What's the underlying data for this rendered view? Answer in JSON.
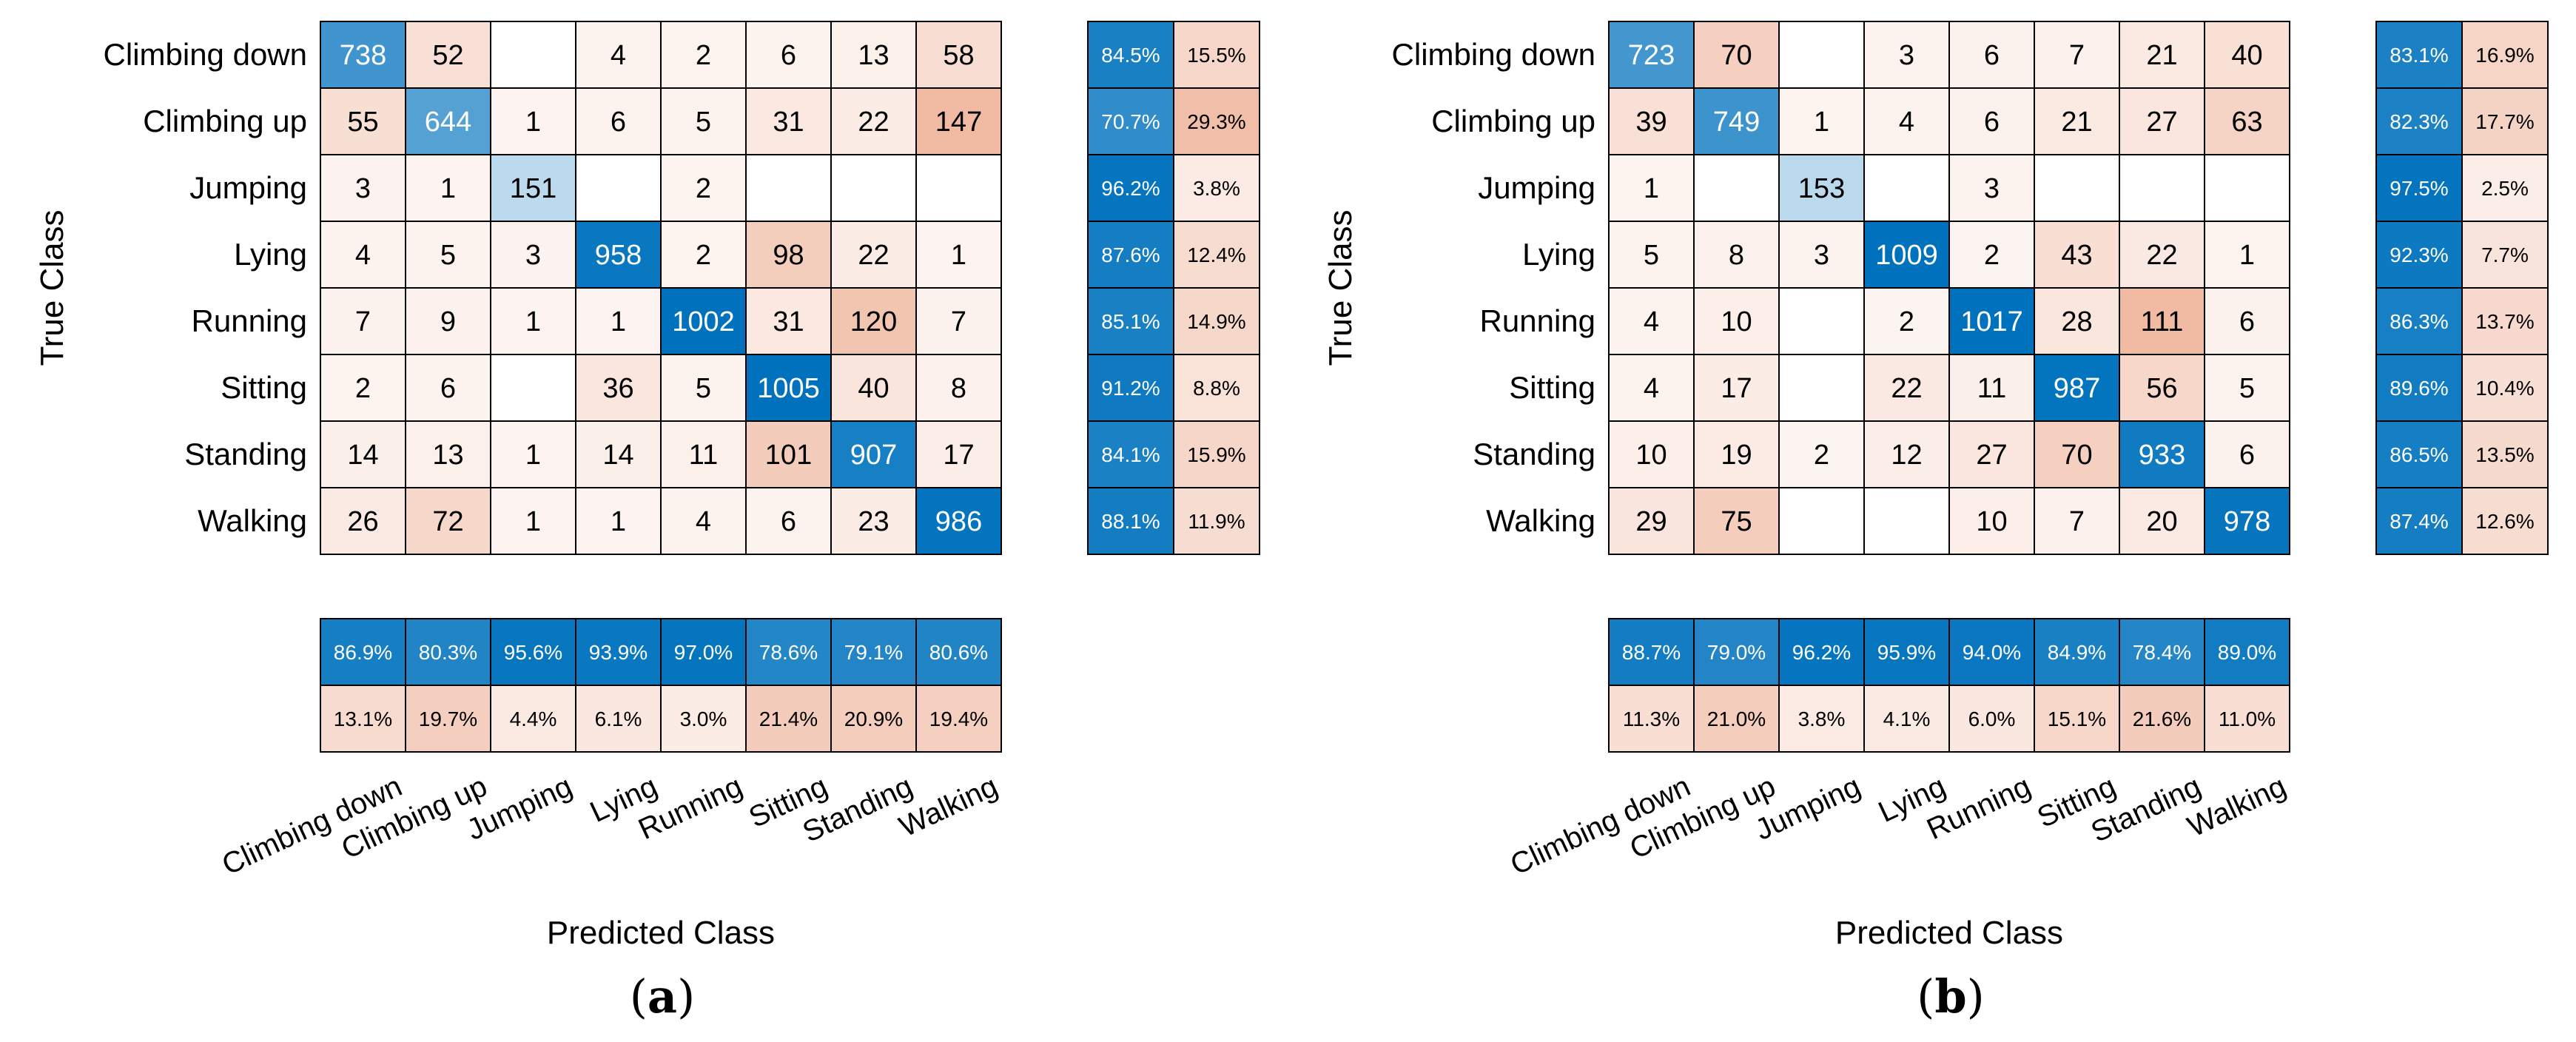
{
  "chart_data": [
    {
      "type": "heatmap",
      "panel_label": "a",
      "xlabel": "Predicted Class",
      "ylabel": "True Class",
      "classes": [
        "Climbing down",
        "Climbing up",
        "Jumping",
        "Lying",
        "Running",
        "Sitting",
        "Standing",
        "Walking"
      ],
      "matrix": [
        [
          738,
          52,
          null,
          4,
          2,
          6,
          13,
          58
        ],
        [
          55,
          644,
          1,
          6,
          5,
          31,
          22,
          147
        ],
        [
          3,
          1,
          151,
          null,
          2,
          null,
          null,
          null
        ],
        [
          4,
          5,
          3,
          958,
          2,
          98,
          22,
          1
        ],
        [
          7,
          9,
          1,
          1,
          1002,
          31,
          120,
          7
        ],
        [
          2,
          6,
          null,
          36,
          5,
          1005,
          40,
          8
        ],
        [
          14,
          13,
          1,
          14,
          11,
          101,
          907,
          17
        ],
        [
          26,
          72,
          1,
          1,
          4,
          6,
          23,
          986
        ]
      ],
      "row_summary": {
        "correct": [
          "84.5%",
          "70.7%",
          "96.2%",
          "87.6%",
          "85.1%",
          "91.2%",
          "84.1%",
          "88.1%"
        ],
        "incorrect": [
          "15.5%",
          "29.3%",
          "3.8%",
          "12.4%",
          "14.9%",
          "8.8%",
          "15.9%",
          "11.9%"
        ]
      },
      "column_summary": {
        "correct": [
          "86.9%",
          "80.3%",
          "95.6%",
          "93.9%",
          "97.0%",
          "78.6%",
          "79.1%",
          "80.6%"
        ],
        "incorrect": [
          "13.1%",
          "19.7%",
          "4.4%",
          "6.1%",
          "3.0%",
          "21.4%",
          "20.9%",
          "19.4%"
        ]
      }
    },
    {
      "type": "heatmap",
      "panel_label": "b",
      "xlabel": "Predicted Class",
      "ylabel": "True Class",
      "classes": [
        "Climbing down",
        "Climbing up",
        "Jumping",
        "Lying",
        "Running",
        "Sitting",
        "Standing",
        "Walking"
      ],
      "matrix": [
        [
          723,
          70,
          null,
          3,
          6,
          7,
          21,
          40
        ],
        [
          39,
          749,
          1,
          4,
          6,
          21,
          27,
          63
        ],
        [
          1,
          null,
          153,
          null,
          3,
          null,
          null,
          null
        ],
        [
          5,
          8,
          3,
          1009,
          2,
          43,
          22,
          1
        ],
        [
          4,
          10,
          null,
          2,
          1017,
          28,
          111,
          6
        ],
        [
          4,
          17,
          null,
          22,
          11,
          987,
          56,
          5
        ],
        [
          10,
          19,
          2,
          12,
          27,
          70,
          933,
          6
        ],
        [
          29,
          75,
          null,
          null,
          10,
          7,
          20,
          978
        ]
      ],
      "row_summary": {
        "correct": [
          "83.1%",
          "82.3%",
          "97.5%",
          "92.3%",
          "86.3%",
          "89.6%",
          "86.5%",
          "87.4%"
        ],
        "incorrect": [
          "16.9%",
          "17.7%",
          "2.5%",
          "7.7%",
          "13.7%",
          "10.4%",
          "13.5%",
          "12.6%"
        ]
      },
      "column_summary": {
        "correct": [
          "88.7%",
          "79.0%",
          "96.2%",
          "95.9%",
          "94.0%",
          "84.9%",
          "78.4%",
          "89.0%"
        ],
        "incorrect": [
          "11.3%",
          "21.0%",
          "3.8%",
          "4.1%",
          "6.0%",
          "15.1%",
          "21.6%",
          "11.0%"
        ]
      }
    }
  ]
}
